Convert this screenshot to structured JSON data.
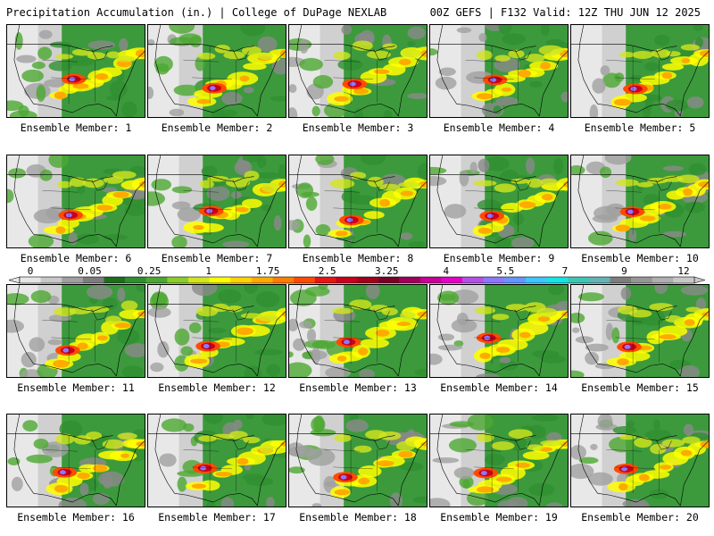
{
  "header": {
    "left": "Precipitation Accumulation (in.) | College of DuPage NEXLAB",
    "right": "00Z GEFS | F132 Valid: 12Z THU JUN 12 2025"
  },
  "member_prefix": "Ensemble Member: ",
  "members": [
    {
      "label": "Ensemble Member: 1"
    },
    {
      "label": "Ensemble Member: 2"
    },
    {
      "label": "Ensemble Member: 3"
    },
    {
      "label": "Ensemble Member: 4"
    },
    {
      "label": "Ensemble Member: 5"
    },
    {
      "label": "Ensemble Member: 6"
    },
    {
      "label": "Ensemble Member: 7"
    },
    {
      "label": "Ensemble Member: 8"
    },
    {
      "label": "Ensemble Member: 9"
    },
    {
      "label": "Ensemble Member: 10"
    },
    {
      "label": "Ensemble Member: 11"
    },
    {
      "label": "Ensemble Member: 12"
    },
    {
      "label": "Ensemble Member: 13"
    },
    {
      "label": "Ensemble Member: 14"
    },
    {
      "label": "Ensemble Member: 15"
    },
    {
      "label": "Ensemble Member: 16"
    },
    {
      "label": "Ensemble Member: 17"
    },
    {
      "label": "Ensemble Member: 18"
    },
    {
      "label": "Ensemble Member: 19"
    },
    {
      "label": "Ensemble Member: 20"
    }
  ],
  "colorbar": {
    "tick_labels": [
      "0",
      "0.05",
      "0.25",
      "1",
      "1.75",
      "2.5",
      "3.25",
      "4",
      "5.5",
      "7",
      "9",
      "12"
    ],
    "colors": [
      "#e6e6e6",
      "#c8c8c8",
      "#a0a0a0",
      "#7d7d7d",
      "#1e6e1e",
      "#2f8f2f",
      "#4ca832",
      "#8ccd2a",
      "#d2e61e",
      "#ffff00",
      "#ffd200",
      "#ffaa00",
      "#ff7d00",
      "#ff4b00",
      "#e61414",
      "#c8001e",
      "#a0001e",
      "#780028",
      "#a0005a",
      "#c80096",
      "#e600c8",
      "#b450e6",
      "#8c78ff",
      "#6496ff",
      "#3cc8ff",
      "#14e6e6",
      "#3cc8b4",
      "#64b4b4",
      "#7d7d7d",
      "#969696",
      "#afafaf",
      "#c8c8c8"
    ]
  }
}
